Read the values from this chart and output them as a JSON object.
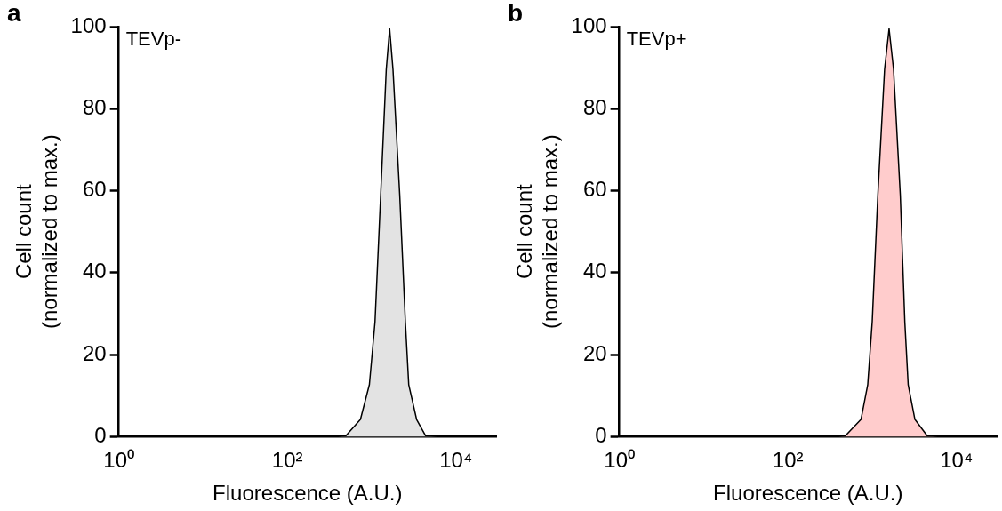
{
  "chart_data": [
    {
      "type": "area",
      "title": "TEVp-",
      "xlabel": "Fluorescence (A.U.)",
      "ylabel": "Cell count\n(normalized to max.)",
      "annotations": [
        "a"
      ],
      "log": "x",
      "grid": false,
      "legend": false,
      "x": [
        400,
        493,
        736,
        940,
        1096,
        1279,
        1490,
        1634,
        1791,
        2154,
        2512,
        2754,
        3415,
        4365,
        6000
      ],
      "series": [
        {
          "color": "#e3e3e3",
          "values": [
            0,
            0.2,
            4.2,
            12.7,
            28,
            58.9,
            89.6,
            99.5,
            89.6,
            58.9,
            28,
            12.7,
            4.2,
            0.2,
            0
          ]
        }
      ],
      "xlim": [
        1,
        30000
      ],
      "xticks": [
        {
          "value": 1,
          "label": "10⁰"
        },
        {
          "value": 100,
          "label": "10²"
        },
        {
          "value": 10000,
          "label": "10⁴"
        }
      ],
      "ylim": [
        0,
        100
      ],
      "yticks": [
        0,
        20,
        40,
        60,
        80,
        100
      ]
    },
    {
      "type": "area",
      "title": "TEVp+",
      "xlabel": "Fluorescence (A.U.)",
      "ylabel": "Cell count\n(normalized to max.)",
      "annotations": [
        "b"
      ],
      "log": "x",
      "grid": false,
      "legend": false,
      "x": [
        400,
        479,
        736,
        885,
        1000,
        1166,
        1402,
        1585,
        1791,
        2154,
        2437,
        2671,
        3212,
        4500,
        6000
      ],
      "series": [
        {
          "color": "#ffcccc",
          "values": [
            0,
            0.2,
            4.2,
            12.7,
            28,
            58.9,
            89.6,
            99.5,
            89.6,
            58.9,
            28,
            12.7,
            4.2,
            0.2,
            0
          ]
        }
      ],
      "xlim": [
        1,
        30000
      ],
      "xticks": [
        {
          "value": 1,
          "label": "10⁰"
        },
        {
          "value": 100,
          "label": "10²"
        },
        {
          "value": 10000,
          "label": "10⁴"
        }
      ],
      "ylim": [
        0,
        100
      ],
      "yticks": [
        0,
        20,
        40,
        60,
        80,
        100
      ]
    }
  ]
}
